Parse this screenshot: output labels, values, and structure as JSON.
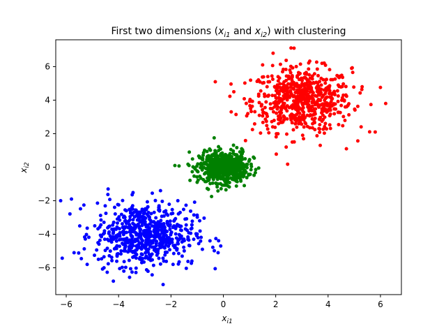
{
  "chart_data": {
    "type": "scatter",
    "title": "First two dimensions (x_i1 and x_i2) with clustering",
    "title_parts": {
      "pre": "First two dimensions (",
      "v1": "x",
      "s1": "i1",
      "mid": " and ",
      "v2": "x",
      "s2": "i2",
      "post": ") with clustering"
    },
    "xlabel": {
      "var": "x",
      "sub": "i1"
    },
    "ylabel": {
      "var": "x",
      "sub": "i2"
    },
    "xlim": [
      -6.4,
      6.8
    ],
    "ylim": [
      -7.6,
      7.6
    ],
    "xticks": [
      -6,
      -4,
      -2,
      0,
      2,
      4,
      6
    ],
    "yticks": [
      -6,
      -4,
      -2,
      0,
      2,
      4,
      6
    ],
    "grid": false,
    "legend": "none",
    "series": [
      {
        "color": "#ff0000",
        "center": [
          3.0,
          4.0
        ],
        "std": [
          0.95,
          0.95
        ],
        "count": 650,
        "points": [
          [
            6.2,
            3.8
          ],
          [
            4.7,
            1.1
          ],
          [
            2.7,
            7.1
          ],
          [
            0.3,
            3.3
          ],
          [
            5.8,
            2.1
          ],
          [
            1.5,
            6.1
          ],
          [
            4.9,
            5.9
          ],
          [
            0.4,
            4.5
          ],
          [
            2.4,
            1.2
          ],
          [
            3.7,
            1.3
          ],
          [
            5.3,
            4.8
          ],
          [
            1.9,
            6.8
          ]
        ]
      },
      {
        "color": "#008000",
        "center": [
          0.0,
          0.0
        ],
        "std": [
          0.45,
          0.45
        ],
        "count": 650,
        "points": [
          [
            -1.85,
            0.1
          ],
          [
            -0.45,
            -1.75
          ],
          [
            1.35,
            -0.05
          ],
          [
            0.7,
            1.1
          ],
          [
            -0.35,
            1.75
          ],
          [
            -1.3,
            0.9
          ],
          [
            0.1,
            -1.35
          ],
          [
            1.15,
            0.6
          ],
          [
            -1.0,
            -0.9
          ],
          [
            0.8,
            -1.1
          ]
        ]
      },
      {
        "color": "#0000ff",
        "center": [
          -3.0,
          -4.0
        ],
        "std": [
          0.95,
          0.95
        ],
        "count": 650,
        "points": [
          [
            -5.8,
            -1.9
          ],
          [
            -4.2,
            -6.8
          ],
          [
            -2.3,
            -7.0
          ],
          [
            -0.1,
            -4.7
          ],
          [
            -0.2,
            -5.1
          ],
          [
            -4.4,
            -1.3
          ],
          [
            -2.4,
            -1.4
          ],
          [
            -5.7,
            -5.1
          ],
          [
            -1.2,
            -5.6
          ],
          [
            -5.2,
            -5.8
          ],
          [
            -0.8,
            -4.9
          ],
          [
            -3.8,
            -6.2
          ]
        ]
      }
    ]
  }
}
